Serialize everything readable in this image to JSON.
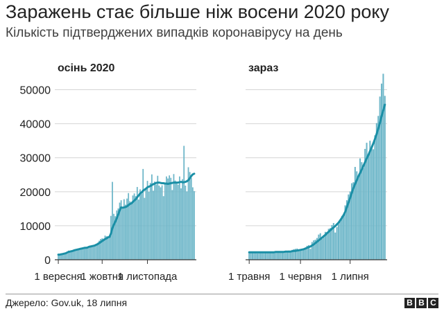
{
  "header": {
    "title": "Заражень стає більше ніж восени 2020 року",
    "subtitle": "Кількість підтверджених випадків коронавірусу на день"
  },
  "footer": {
    "source": "Джерело: Gov.uk, 18 липня",
    "logo": [
      "B",
      "B",
      "C"
    ]
  },
  "colors": {
    "bar": "#6fb7c9",
    "line": "#1a8fa6",
    "grid": "#d4d4d4",
    "text": "#222222"
  },
  "chart_data": [
    {
      "type": "bar",
      "title": "осінь 2020",
      "x_ticks": [
        "1 вересня",
        "1 жовтня",
        "1 листопада"
      ],
      "x_tick_index": [
        0,
        30,
        61
      ],
      "y_ticks": [
        0,
        10000,
        20000,
        30000,
        40000,
        50000
      ],
      "ylim": [
        0,
        55000
      ],
      "grid": true,
      "values": [
        1300,
        1400,
        1600,
        1800,
        1800,
        2000,
        2400,
        2700,
        2500,
        2600,
        2800,
        3000,
        3100,
        3200,
        3300,
        3500,
        3400,
        3600,
        3700,
        3300,
        3800,
        4000,
        4200,
        4300,
        3900,
        4400,
        4500,
        5000,
        5600,
        6100,
        6300,
        6200,
        7100,
        6900,
        6500,
        7200,
        12900,
        22900,
        13500,
        12800,
        14500,
        15100,
        16800,
        17500,
        15000,
        17800,
        16200,
        18000,
        19600,
        17200,
        16500,
        18900,
        19500,
        18700,
        21400,
        17700,
        20700,
        19400,
        26700,
        18200,
        20900,
        23200,
        20000,
        22600,
        25100,
        20300,
        23000,
        22100,
        24700,
        21800,
        21300,
        21900,
        18700,
        22400,
        24500,
        23900,
        24800,
        24100,
        20500,
        25200,
        23300,
        22800,
        22100,
        24500,
        21000,
        23700,
        33500,
        21800,
        20100,
        27200,
        25800,
        24100,
        21300,
        20200
      ],
      "trend": [
        1500,
        1500,
        1600,
        1700,
        1800,
        1900,
        2100,
        2300,
        2400,
        2500,
        2600,
        2800,
        2900,
        3000,
        3100,
        3200,
        3300,
        3400,
        3500,
        3500,
        3600,
        3800,
        3900,
        4000,
        4100,
        4200,
        4400,
        4600,
        4900,
        5200,
        5500,
        5800,
        6100,
        6300,
        6600,
        6700,
        7700,
        9300,
        10300,
        11200,
        12200,
        13300,
        14500,
        15400,
        15300,
        15400,
        15500,
        15700,
        16100,
        16400,
        16600,
        17000,
        17400,
        17800,
        18400,
        18900,
        19500,
        19800,
        20300,
        20600,
        20900,
        21300,
        21500,
        21700,
        22000,
        22200,
        22400,
        22600,
        22700,
        22700,
        22600,
        22500,
        22500,
        22400,
        22400,
        22300,
        22400,
        22500,
        22600,
        22700,
        22700,
        22700,
        22700,
        22800,
        22900,
        22800,
        22800,
        22900,
        23100,
        23400,
        24000,
        24600,
        25100,
        25300
      ]
    },
    {
      "type": "bar",
      "title": "зараз",
      "x_ticks": [
        "1 травня",
        "1 червня",
        "1 липня"
      ],
      "x_tick_index": [
        0,
        31,
        61
      ],
      "y_ticks": [
        0,
        10000,
        20000,
        30000,
        40000,
        50000
      ],
      "ylim": [
        0,
        55000
      ],
      "grid": true,
      "values": [
        2200,
        2100,
        2000,
        2300,
        2100,
        1900,
        2200,
        2300,
        2000,
        2100,
        2200,
        2100,
        2400,
        2200,
        2000,
        2100,
        2300,
        2400,
        2200,
        2500,
        2300,
        2200,
        2600,
        2500,
        2700,
        2400,
        2900,
        3100,
        3200,
        3300,
        3000,
        2900,
        3100,
        3300,
        3400,
        4100,
        4300,
        3200,
        5200,
        5700,
        5900,
        6400,
        7400,
        7800,
        6100,
        7200,
        8200,
        8100,
        9100,
        9300,
        10200,
        10800,
        8000,
        9600,
        10500,
        11600,
        12900,
        13300,
        16000,
        17500,
        19200,
        20100,
        22500,
        22800,
        27300,
        26000,
        24600,
        29800,
        28700,
        27000,
        32600,
        34400,
        31100,
        35000,
        33200,
        32500,
        36600,
        40200,
        42300,
        48000,
        51800,
        54700,
        48200
      ],
      "trend": [
        2200,
        2200,
        2200,
        2200,
        2200,
        2200,
        2200,
        2200,
        2200,
        2200,
        2200,
        2200,
        2200,
        2200,
        2200,
        2200,
        2300,
        2300,
        2300,
        2300,
        2300,
        2300,
        2400,
        2400,
        2400,
        2400,
        2500,
        2600,
        2600,
        2700,
        2800,
        2900,
        3000,
        3100,
        3300,
        3500,
        3700,
        3900,
        4200,
        4500,
        4900,
        5300,
        5700,
        6100,
        6500,
        6900,
        7300,
        7800,
        8200,
        8700,
        9100,
        9500,
        9900,
        10400,
        10900,
        11600,
        12300,
        13100,
        14100,
        15400,
        16800,
        18200,
        19700,
        21100,
        22300,
        23400,
        24500,
        25500,
        26500,
        27600,
        28700,
        29800,
        30800,
        31900,
        33000,
        34200,
        35500,
        37000,
        38600,
        40300,
        42200,
        43900,
        45600
      ]
    }
  ]
}
